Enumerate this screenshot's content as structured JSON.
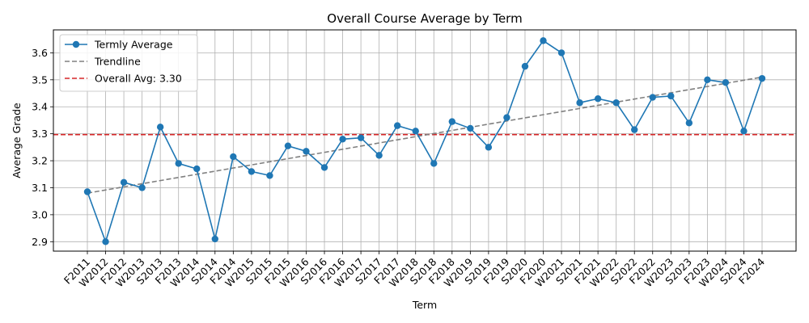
{
  "chart_data": {
    "type": "line",
    "title": "Overall Course Average by Term",
    "xlabel": "Term",
    "ylabel": "Average Grade",
    "ylim": [
      2.865,
      3.685
    ],
    "yticks": [
      2.9,
      3.0,
      3.1,
      3.2,
      3.3,
      3.4,
      3.5,
      3.6
    ],
    "grid": true,
    "legend_position": "top-left",
    "categories": [
      "F2011",
      "W2012",
      "F2012",
      "W2013",
      "S2013",
      "F2013",
      "W2014",
      "S2014",
      "F2014",
      "W2015",
      "S2015",
      "F2015",
      "W2016",
      "S2016",
      "F2016",
      "W2017",
      "S2017",
      "F2017",
      "W2018",
      "S2018",
      "F2018",
      "W2019",
      "S2019",
      "F2019",
      "S2020",
      "F2020",
      "W2021",
      "S2021",
      "F2021",
      "W2022",
      "S2022",
      "F2022",
      "W2023",
      "S2023",
      "F2023",
      "W2024",
      "S2024",
      "F2024"
    ],
    "series": [
      {
        "name": "Termly Average",
        "style": "line-marker",
        "color": "#1f77b4",
        "values": [
          3.085,
          2.9,
          3.12,
          3.1,
          3.325,
          3.19,
          3.17,
          2.91,
          3.215,
          3.16,
          3.145,
          3.255,
          3.235,
          3.175,
          3.28,
          3.285,
          3.22,
          3.33,
          3.31,
          3.19,
          3.345,
          3.32,
          3.25,
          3.36,
          3.55,
          3.645,
          3.6,
          3.415,
          3.43,
          3.415,
          3.315,
          3.435,
          3.44,
          3.34,
          3.5,
          3.49,
          3.31,
          3.505
        ]
      },
      {
        "name": "Trendline",
        "style": "dashed",
        "color": "#808080",
        "start": 3.08,
        "end": 3.51
      },
      {
        "name": "Overall Avg: 3.30",
        "style": "dashed-horizontal",
        "color": "#d62728",
        "value": 3.297
      }
    ]
  }
}
